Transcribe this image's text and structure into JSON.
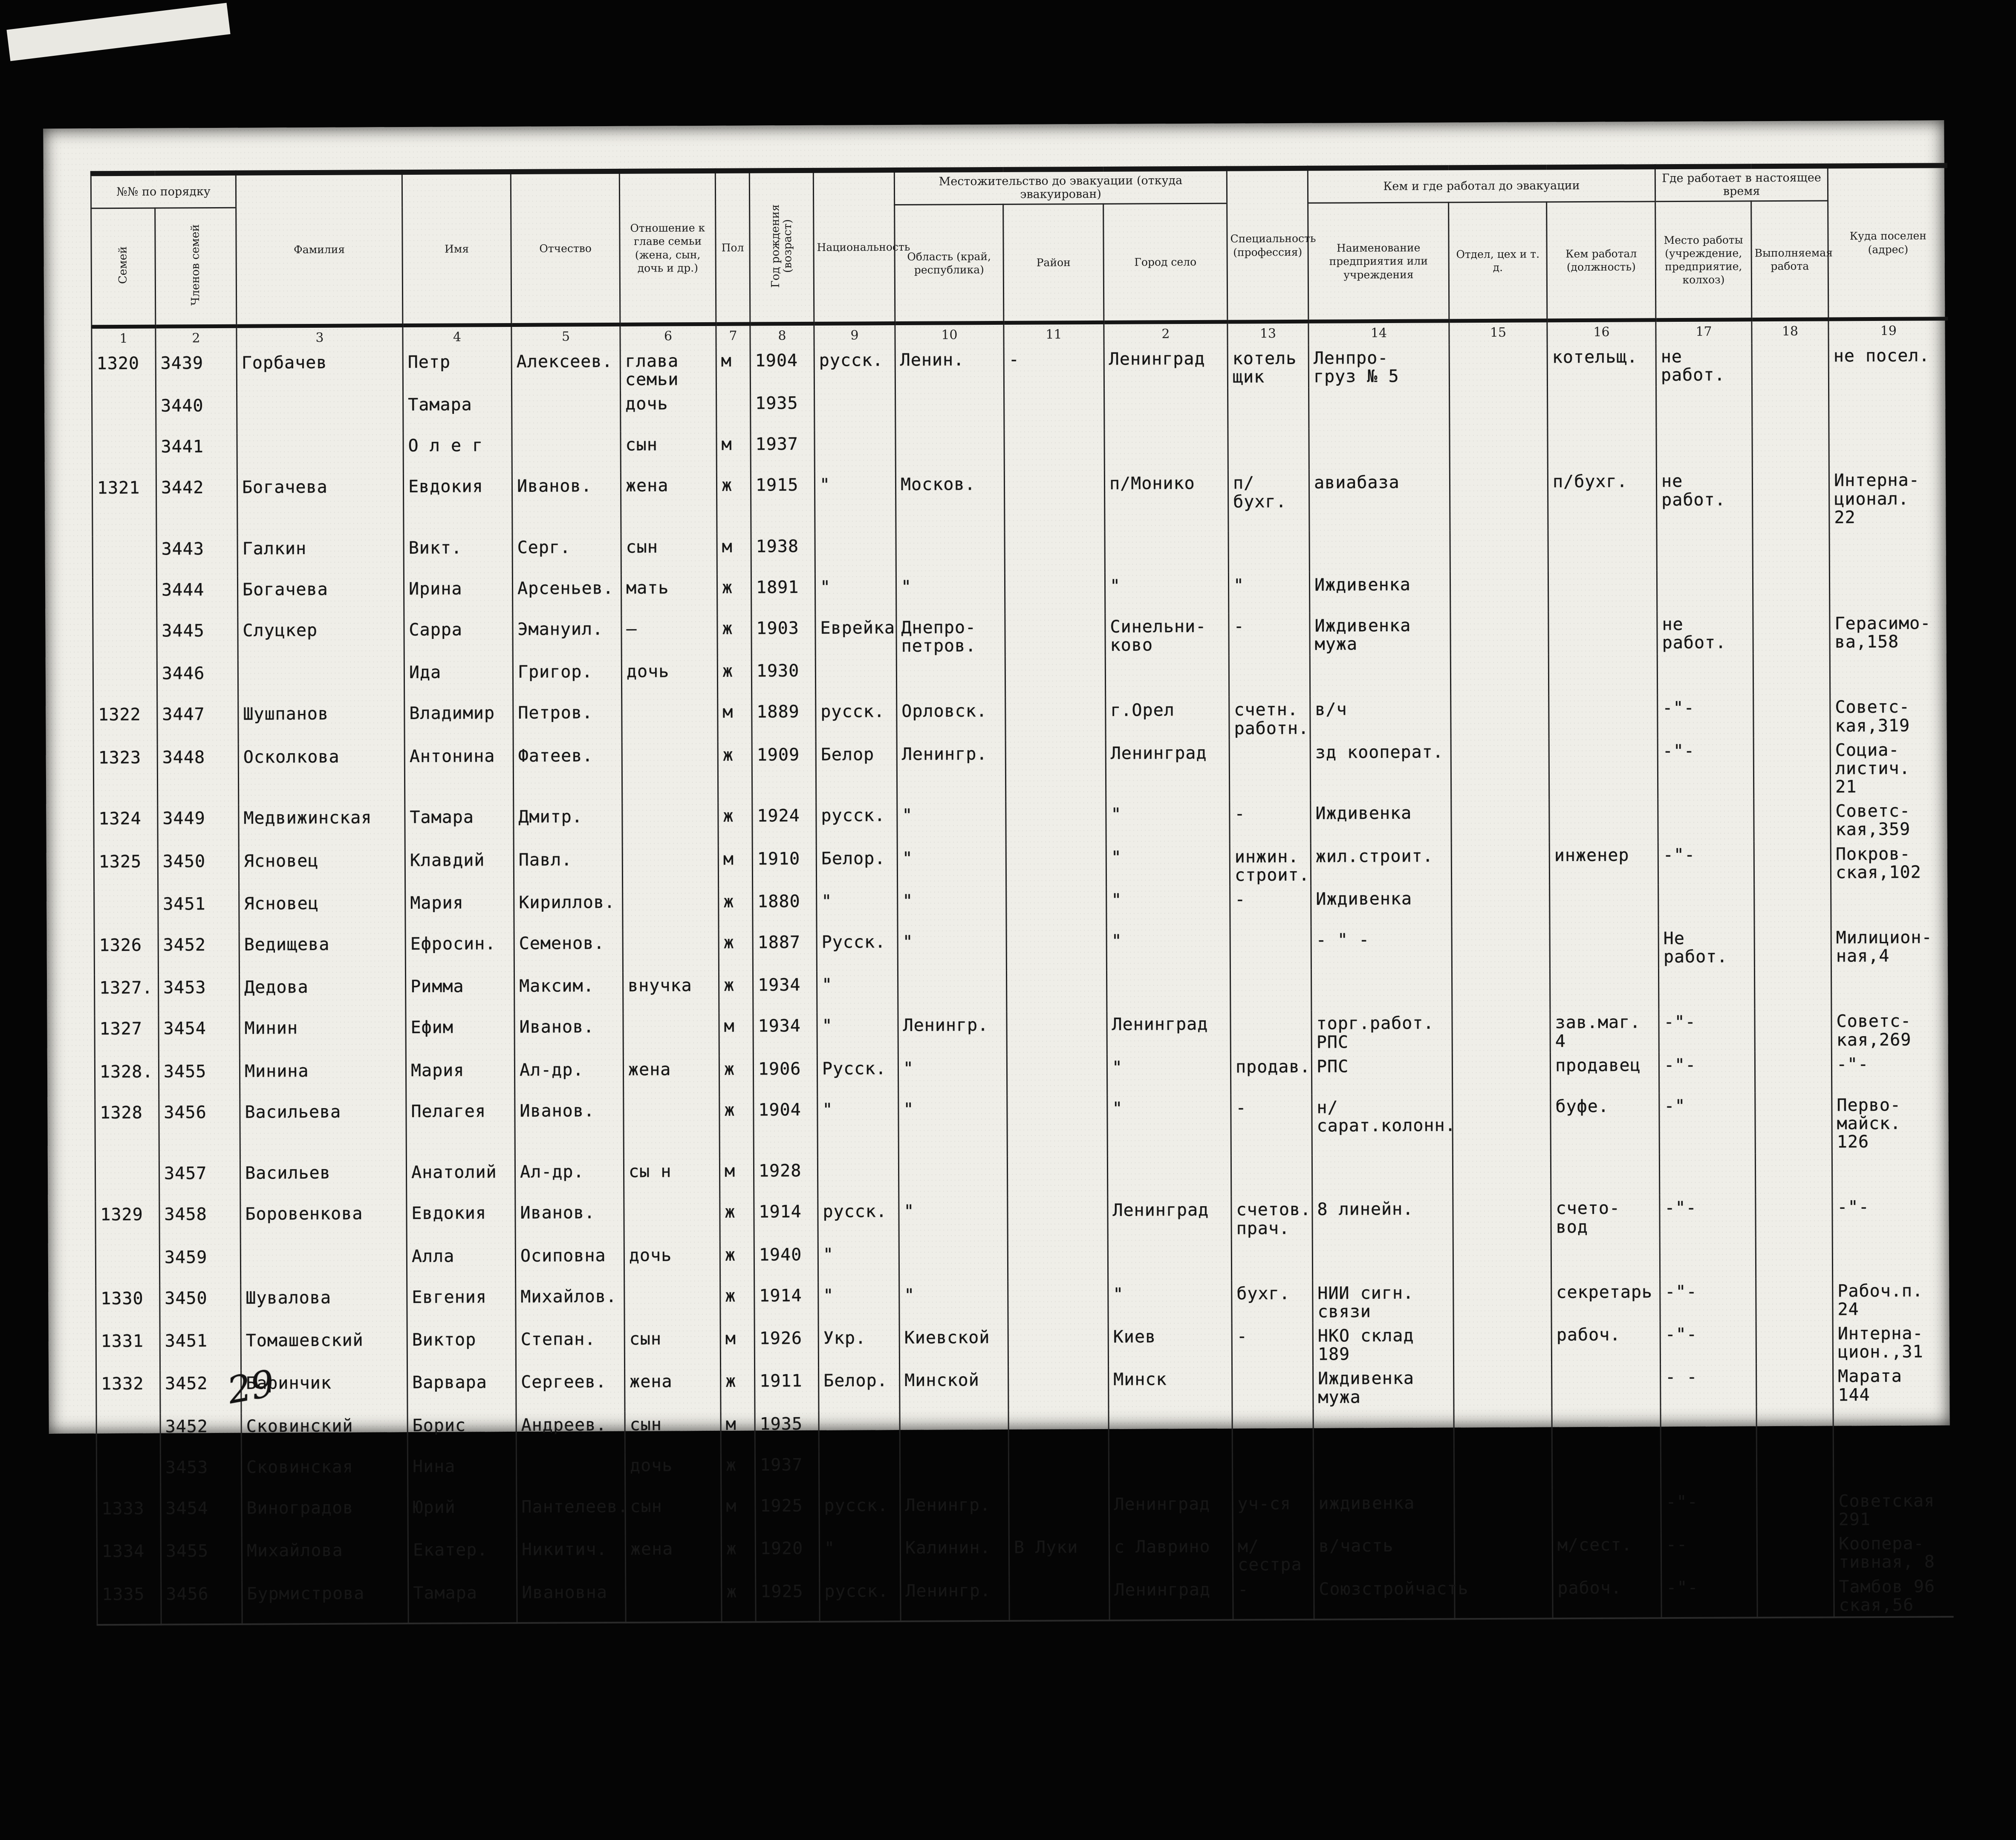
{
  "document": {
    "type_note": "scanned evacuation registry ledger page",
    "handwritten_page_number": "29",
    "table": {
      "header": {
        "group_order": "№№ по порядку",
        "col_family_no": "Семей",
        "col_member_no": "Членов семей",
        "col_surname": "Фамилия",
        "col_name": "Имя",
        "col_patronymic": "Отчество",
        "col_relation": "Отношение к главе семьи (жена, сын, дочь и др.)",
        "col_sex": "Пол",
        "col_birth_year": "Год рождения (возраст)",
        "col_nationality": "Национальность",
        "group_residence": "Местожительство до эвакуации (откуда эвакуирован)",
        "col_oblast": "Область (край, республика)",
        "col_raion": "Район",
        "col_city": "Город село",
        "col_specialty": "Специальность (профессия)",
        "group_prev_work": "Кем и где работал до эвакуации",
        "col_enterprise": "Наименование предприятия или учреждения",
        "col_dept": "Отдел, цех и т. д.",
        "col_position": "Кем работал (должность)",
        "group_current_work": "Где работает в настоящее время",
        "col_cur_place": "Место работы (учреждение, предприятие, колхоз)",
        "col_cur_job": "Выполняемая работа",
        "col_address": "Куда поселен (адрес)"
      },
      "column_numbers": [
        "1",
        "2",
        "3",
        "4",
        "5",
        "6",
        "7",
        "8",
        "9",
        "10",
        "11",
        "2",
        "13",
        "14",
        "15",
        "16",
        "17",
        "18",
        "19"
      ],
      "rows": [
        [
          "1320",
          "3439",
          "Горбачев",
          "Петр",
          "Алексеев.",
          "глава\nсемьи",
          "м",
          "1904",
          "русск.",
          "Ленин.",
          "-",
          "Ленинград",
          "котель\nщик",
          "Ленпро-\nгруз № 5",
          "",
          "котельщ.",
          "не работ.",
          "",
          "не посел."
        ],
        [
          "",
          "3440",
          "",
          "Тамара",
          "",
          "дочь",
          "",
          "1935",
          "",
          "",
          "",
          "",
          "",
          "",
          "",
          "",
          "",
          "",
          ""
        ],
        [
          "",
          "3441",
          "",
          "О л е г",
          "",
          "сын",
          "м",
          "1937",
          "",
          "",
          "",
          "",
          "",
          "",
          "",
          "",
          "",
          "",
          ""
        ],
        [
          "1321",
          "3442",
          "Богачева",
          "Евдокия",
          "Иванов.",
          "жена",
          "ж",
          "1915",
          "\"",
          "Москов.",
          "",
          "п/Монико",
          "п/бухг.",
          "авиабаза",
          "",
          "п/бухг.",
          "не работ.",
          "",
          "Интерна-\nционал.\n22"
        ],
        [
          "",
          "3443",
          "Галкин",
          "Викт.",
          "Серг.",
          "сын",
          "м",
          "1938",
          "",
          "",
          "",
          "",
          "",
          "",
          "",
          "",
          "",
          "",
          ""
        ],
        [
          "",
          "3444",
          "Богачева",
          "Ирина",
          "Арсеньев.",
          "мать",
          "ж",
          "1891",
          "\"",
          "\"",
          "",
          "\"",
          "\"",
          "Иждивенка",
          "",
          "",
          "",
          "",
          ""
        ],
        [
          "",
          "3445",
          "Слуцкер",
          "Сарра",
          "Эмануил.",
          "—",
          "ж",
          "1903",
          "Еврейка",
          "Днепро-\nпетров.",
          "",
          "Синельни-\nково",
          "-",
          "Иждивенка мужа",
          "",
          "",
          "не работ.",
          "",
          "Герасимо-\nва,158"
        ],
        [
          "",
          "3446",
          "",
          "Ида",
          "Григор.",
          "дочь",
          "ж",
          "1930",
          "",
          "",
          "",
          "",
          "",
          "",
          "",
          "",
          "",
          "",
          ""
        ],
        [
          "1322",
          "3447",
          "Шушпанов",
          "Владимир",
          "Петров.",
          "",
          "м",
          "1889",
          "русск.",
          "Орловск.",
          "",
          "г.Орел",
          "счетн.\nработн.",
          "в/ч",
          "",
          "",
          "-\"-",
          "",
          "Советс-\nкая,319"
        ],
        [
          "1323",
          "3448",
          "Осколкова",
          "Антонина",
          "Фатеев.",
          "",
          "ж",
          "1909",
          "Белор",
          "Ленингр.",
          "",
          "Ленинград",
          "",
          "зд кооперат.",
          "",
          "",
          "-\"-",
          "",
          "Социа-\nлистич.\n21"
        ],
        [
          "1324",
          "3449",
          "Медвижинская",
          "Тамара",
          "Дмитр.",
          "",
          "ж",
          "1924",
          "русск.",
          "\"",
          "",
          "\"",
          "-",
          "Иждивенка",
          "",
          "",
          "",
          "",
          "Советс-\nкая,359"
        ],
        [
          "1325",
          "3450",
          "Ясновец",
          "Клавдий",
          "Павл.",
          "",
          "м",
          "1910",
          "Белор.",
          "\"",
          "",
          "\"",
          "инжин.\nстроит.",
          "жил.строит.",
          "",
          "инженер",
          "-\"-",
          "",
          "Покров-\nская,102"
        ],
        [
          "",
          "3451",
          "Ясновец",
          "Мария",
          "Кириллов.",
          "",
          "ж",
          "1880",
          "\"",
          "\"",
          "",
          "\"",
          "-",
          "Иждивенка",
          "",
          "",
          "",
          "",
          ""
        ],
        [
          "1326",
          "3452",
          "Ведищева",
          "Ефросин.",
          "Семенов.",
          "",
          "ж",
          "1887",
          "Русск.",
          "\"",
          "",
          "\"",
          "",
          "- \" -",
          "",
          "",
          "Не работ.",
          "",
          "Милицион-\nная,4"
        ],
        [
          "1327.",
          "3453",
          "Дедова",
          "Римма",
          "Максим.",
          "внучка",
          "ж",
          "1934",
          "\"",
          "",
          "",
          "",
          "",
          "",
          "",
          "",
          "",
          "",
          ""
        ],
        [
          "1327",
          "3454",
          "Минин",
          "Ефим",
          "Иванов.",
          "",
          "м",
          "1934",
          "\"",
          "Ленингр.",
          "",
          "Ленинград",
          "",
          "торг.работ. РПС",
          "",
          "зав.маг.\n4",
          "-\"-",
          "",
          "Советс-\nкая,269"
        ],
        [
          "1328.",
          "3455",
          "Минина",
          "Мария",
          "Ал-др.",
          "жена",
          "ж",
          "1906",
          "Русск.",
          "\"",
          "",
          "\"",
          "продав.",
          "РПС",
          "",
          "продавец",
          "-\"-",
          "",
          "-\"-"
        ],
        [
          "1328",
          "3456",
          "Васильева",
          "Пелагея",
          "Иванов.",
          "",
          "ж",
          "1904",
          "\"",
          "\"",
          "",
          "\"",
          "-",
          "н/сарат.колонн.",
          "",
          "буфе.",
          "-\"",
          "",
          "Перво-\nмайск.\n126"
        ],
        [
          "",
          "3457",
          "Васильев",
          "Анатолий",
          "Ал-др.",
          "сы н",
          "м",
          "1928",
          "",
          "",
          "",
          "",
          "",
          "",
          "",
          "",
          "",
          "",
          ""
        ],
        [
          "1329",
          "3458",
          "Боровенкова",
          "Евдокия",
          "Иванов.",
          "",
          "ж",
          "1914",
          "русск.",
          "\"",
          "",
          "Ленинград",
          "счетов.\nпрач.",
          "8 линейн.",
          "",
          "счето-\nвод",
          "-\"-",
          "",
          "-\"-"
        ],
        [
          "",
          "3459",
          "",
          "Алла",
          "Осиповна",
          "дочь",
          "ж",
          "1940",
          "\"",
          "",
          "",
          "",
          "",
          "",
          "",
          "",
          "",
          "",
          ""
        ],
        [
          "1330",
          "3450",
          "Шувалова",
          "Евгения",
          "Михайлов.",
          "",
          "ж",
          "1914",
          "\"",
          "\"",
          "",
          "\"",
          "бухг.",
          "НИИ сигн.\nсвязи",
          "",
          "секретарь",
          "-\"-",
          "",
          "Рабоч.п.\n24"
        ],
        [
          "1331",
          "3451",
          "Томашевский",
          "Виктор",
          "Степан.",
          "сын",
          "м",
          "1926",
          "Укр.",
          "Киевской",
          "",
          "Киев",
          "-",
          "НКО склад 189",
          "",
          "рабоч.",
          "-\"-",
          "",
          "Интерна-\nцион.,31"
        ],
        [
          "1332",
          "3452",
          "Баринчик",
          "Варвара",
          "Сергеев.",
          "жена",
          "ж",
          "1911",
          "Белор.",
          "Минской",
          "",
          "Минск",
          "",
          "Иждивенка мужа",
          "",
          "",
          "- -",
          "",
          "Марата\n144"
        ],
        [
          "",
          "3452",
          "Сковинский",
          "Борис",
          "Андреев.",
          "сын",
          "м",
          "1935",
          "",
          "",
          "",
          "",
          "",
          "",
          "",
          "",
          "",
          "",
          ""
        ],
        [
          "",
          "3453",
          "Сковинская",
          "Нина",
          "",
          "дочь",
          "ж",
          "1937",
          "",
          "",
          "",
          "",
          "",
          "",
          "",
          "",
          "",
          "",
          ""
        ],
        [
          "1333",
          "3454",
          "Виноградов",
          "Юрий",
          "Пантелеев.",
          "сын",
          "м",
          "1925",
          "русск.",
          "Ленингр.",
          "",
          "Ленинград",
          "уч-ся",
          "иждивенка",
          "",
          "",
          "-\"-",
          "",
          "Советская\n291"
        ],
        [
          "1334",
          "3455",
          "Михайлова",
          "Екатер.",
          "Никитич.",
          "жена",
          "ж",
          "1920",
          "\"",
          "Калинин.",
          "В Луки",
          "с Лаврино",
          "м/сестра",
          "в/часть",
          "",
          "м/сест.",
          "--",
          "",
          "Коопера-\nтивная, 8"
        ],
        [
          "1335",
          "3456",
          "Бурмистрова",
          "Тамара",
          "Ивановна",
          "",
          "ж",
          "1925",
          "русск.",
          "Ленингр.",
          "",
          "Ленинград",
          "-",
          "Союзстройчасть",
          "",
          "рабоч.",
          "-\"-",
          "",
          "Тамбов 96\nская,56"
        ]
      ]
    }
  }
}
